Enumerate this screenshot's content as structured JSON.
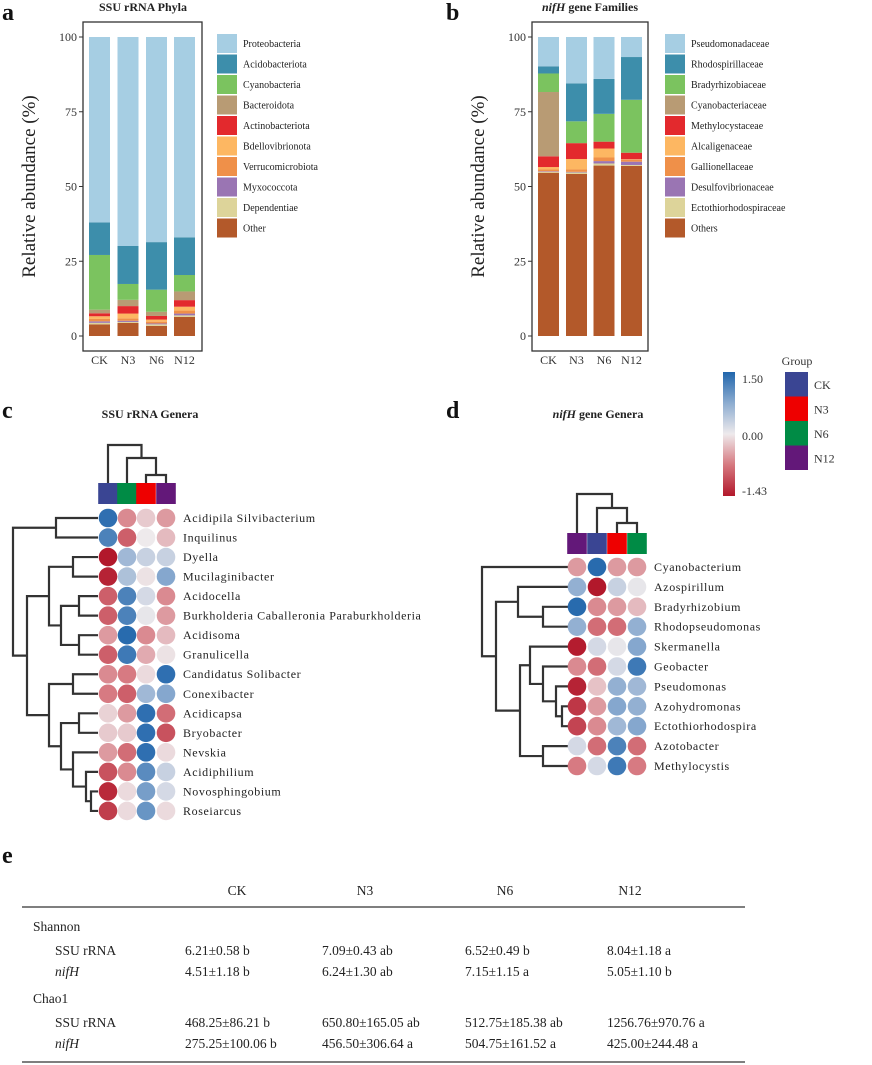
{
  "panels": {
    "a": "a",
    "b": "b",
    "c": "c",
    "d": "d",
    "e": "e"
  },
  "chart_data": [
    {
      "type": "bar",
      "stacked": true,
      "title": "SSU rRNA Phyla",
      "ylabel": "Relative abundance (%)",
      "xlabel": "",
      "ylim": [
        0,
        100
      ],
      "yticks": [
        "0",
        "25",
        "50",
        "75",
        "100"
      ],
      "categories": [
        "CK",
        "N3",
        "N6",
        "N12"
      ],
      "legend_position": "right",
      "series": [
        {
          "name": "Proteobacteria",
          "color": "#a6cee3",
          "values": [
            62.0,
            69.9,
            68.6,
            67.0
          ]
        },
        {
          "name": "Acidobacteriota",
          "color": "#3d8eab",
          "values": [
            10.9,
            12.7,
            15.9,
            12.6
          ]
        },
        {
          "name": "Cyanobacteria",
          "color": "#7bc35f",
          "values": [
            18.3,
            5.3,
            7.4,
            5.5
          ]
        },
        {
          "name": "Bacteroidota",
          "color": "#b89b74",
          "values": [
            1.2,
            2.1,
            1.4,
            2.9
          ]
        },
        {
          "name": "Actinobacteriota",
          "color": "#e3292d",
          "values": [
            1.0,
            2.5,
            1.2,
            2.2
          ]
        },
        {
          "name": "Bdellovibrionota",
          "color": "#fdb762",
          "values": [
            0.9,
            1.6,
            0.7,
            1.3
          ]
        },
        {
          "name": "Verrucomicrobiota",
          "color": "#ef9049",
          "values": [
            0.8,
            0.8,
            0.6,
            1.0
          ]
        },
        {
          "name": "Myxococcota",
          "color": "#9a75b3",
          "values": [
            0.5,
            0.4,
            0.3,
            0.6
          ]
        },
        {
          "name": "Dependentiae",
          "color": "#ddd49a",
          "values": [
            0.5,
            0.3,
            0.5,
            0.5
          ]
        },
        {
          "name": "Other",
          "color": "#b3592a",
          "values": [
            3.9,
            4.4,
            3.4,
            6.4
          ]
        }
      ]
    },
    {
      "type": "bar",
      "stacked": true,
      "title_italic": "nifH",
      "title": " gene Families",
      "ylabel": "Relative abundance (%)",
      "xlabel": "",
      "ylim": [
        0,
        100
      ],
      "yticks": [
        "0",
        "25",
        "50",
        "75",
        "100"
      ],
      "categories": [
        "CK",
        "N3",
        "N6",
        "N12"
      ],
      "legend_position": "right",
      "series": [
        {
          "name": "Pseudomonadaceae",
          "color": "#a6cee3",
          "values": [
            9.8,
            15.5,
            14.0,
            6.7
          ]
        },
        {
          "name": "Rhodospirillaceae",
          "color": "#3d8eab",
          "values": [
            2.4,
            12.7,
            11.7,
            14.3
          ]
        },
        {
          "name": "Bradyrhizobiaceae",
          "color": "#7bc35f",
          "values": [
            6.2,
            7.3,
            9.3,
            17.7
          ]
        },
        {
          "name": "Cyanobacteriaceae",
          "color": "#b89b74",
          "values": [
            21.5,
            0,
            0,
            0
          ]
        },
        {
          "name": "Methylocystaceae",
          "color": "#e3292d",
          "values": [
            3.6,
            5.3,
            2.3,
            2.2
          ]
        },
        {
          "name": "Alcaligenaceae",
          "color": "#fdb762",
          "values": [
            0.8,
            3.5,
            3.0,
            0.2
          ]
        },
        {
          "name": "Gallionellaceae",
          "color": "#ef9049",
          "values": [
            0.6,
            0.8,
            1.2,
            0.6
          ]
        },
        {
          "name": "Desulfovibrionaceae",
          "color": "#9a75b3",
          "values": [
            0.2,
            0.2,
            0.8,
            1.1
          ]
        },
        {
          "name": "Ectothiorhodospiraceae",
          "color": "#ddd49a",
          "values": [
            0.3,
            0.5,
            0.7,
            0.3
          ]
        },
        {
          "name": "Others",
          "color": "#b3592a",
          "values": [
            54.6,
            54.2,
            57.0,
            56.9
          ]
        }
      ]
    },
    {
      "type": "heatmap",
      "title": "SSU rRNA Genera",
      "columns": [
        "CK",
        "N6",
        "N3",
        "N12"
      ],
      "rows": [
        "Acidipila_Silvibacterium",
        "Inquilinus",
        "Dyella",
        "Mucilaginibacter",
        "Acidocella",
        "Burkholderia_Caballeronia_Paraburkholderia",
        "Acidisoma",
        "Granulicella",
        "Candidatus_Solibacter",
        "Conexibacter",
        "Acidicapsa",
        "Bryobacter",
        "Nevskia",
        "Acidiphilium",
        "Novosphingobium",
        "Roseiarcus"
      ],
      "row_labels": [
        "Acidipila  Silvibacterium",
        "Inquilinus",
        "Dyella",
        "Mucilaginibacter",
        "Acidocella",
        "Burkholderia  Caballeronia  Paraburkholderia",
        "Acidisoma",
        "Granulicella",
        "Candidatus  Solibacter",
        "Conexibacter",
        "Acidicapsa",
        "Bryobacter",
        "Nevskia",
        "Acidiphilium",
        "Novosphingobium",
        "Roseiarcus"
      ],
      "values": [
        [
          1.4,
          -0.6,
          -0.2,
          -0.5
        ],
        [
          1.2,
          -0.9,
          0.0,
          -0.3
        ],
        [
          -1.43,
          0.6,
          0.3,
          0.3
        ],
        [
          -1.35,
          0.5,
          -0.05,
          0.8
        ],
        [
          -0.9,
          1.2,
          0.2,
          -0.6
        ],
        [
          -0.9,
          1.2,
          0.05,
          -0.5
        ],
        [
          -0.5,
          1.45,
          -0.6,
          -0.3
        ],
        [
          -0.9,
          1.3,
          -0.4,
          -0.05
        ],
        [
          -0.6,
          -0.7,
          -0.1,
          1.4
        ],
        [
          -0.7,
          -0.9,
          0.6,
          0.8
        ],
        [
          -0.15,
          -0.5,
          1.4,
          -0.8
        ],
        [
          -0.2,
          -0.2,
          1.4,
          -1.0
        ],
        [
          -0.5,
          -0.8,
          1.4,
          -0.1
        ],
        [
          -1.0,
          -0.6,
          1.1,
          0.3
        ],
        [
          -1.3,
          -0.1,
          0.9,
          0.2
        ],
        [
          -1.15,
          -0.1,
          1.0,
          -0.1
        ]
      ]
    },
    {
      "type": "heatmap",
      "title_italic": "nifH",
      "title": " gene Genera",
      "columns": [
        "N12",
        "CK",
        "N3",
        "N6"
      ],
      "rows": [
        "Cyanobacterium",
        "Azospirillum",
        "Bradyrhizobium",
        "Rhodopseudomonas",
        "Skermanella",
        "Geobacter",
        "Pseudomonas",
        "Azohydromonas",
        "Ectothiorhodospira",
        "Azotobacter",
        "Methylocystis"
      ],
      "row_labels": [
        "Cyanobacterium",
        "Azospirillum",
        "Bradyrhizobium",
        "Rhodopseudomonas",
        "Skermanella",
        "Geobacter",
        "Pseudomonas",
        "Azohydromonas",
        "Ectothiorhodospira",
        "Azotobacter",
        "Methylocystis"
      ],
      "values": [
        [
          -0.5,
          1.45,
          -0.5,
          -0.5
        ],
        [
          0.7,
          -1.43,
          0.3,
          0.05
        ],
        [
          1.45,
          -0.6,
          -0.5,
          -0.3
        ],
        [
          0.7,
          -0.8,
          -0.8,
          0.7
        ],
        [
          -1.4,
          0.2,
          0.05,
          0.8
        ],
        [
          -0.6,
          -0.8,
          0.2,
          1.3
        ],
        [
          -1.35,
          -0.25,
          0.7,
          0.6
        ],
        [
          -1.2,
          -0.5,
          0.8,
          0.7
        ],
        [
          -1.1,
          -0.6,
          0.6,
          0.8
        ],
        [
          0.2,
          -0.8,
          1.2,
          -0.8
        ],
        [
          -0.7,
          0.2,
          1.3,
          -0.7
        ]
      ]
    }
  ],
  "color_scale": {
    "min": -1.43,
    "max": 1.5,
    "max_label": "1.50",
    "mid_label": "0.00",
    "min_label": "-1.43",
    "colors": {
      "low": "#b2182b",
      "mid": "#eeeaec",
      "high": "#2166ac"
    }
  },
  "group_legend": {
    "title": "Group",
    "items": [
      {
        "label": "CK",
        "color": "#3a4593"
      },
      {
        "label": "N3",
        "color": "#ee0000"
      },
      {
        "label": "N6",
        "color": "#008b45"
      },
      {
        "label": "N12",
        "color": "#631879"
      }
    ]
  },
  "table": {
    "headers": [
      "CK",
      "N3",
      "N6",
      "N12"
    ],
    "groups": [
      {
        "name": "Shannon",
        "rows": [
          {
            "label": "SSU rRNA",
            "italic": false,
            "values": [
              "6.21±0.58 b",
              "7.09±0.43 ab",
              "6.52±0.49 b",
              "8.04±1.18 a"
            ]
          },
          {
            "label": "nifH",
            "italic": true,
            "values": [
              "4.51±1.18 b",
              "6.24±1.30 ab",
              "7.15±1.15 a",
              "5.05±1.10 b"
            ]
          }
        ]
      },
      {
        "name": "Chao1",
        "rows": [
          {
            "label": "SSU rRNA",
            "italic": false,
            "values": [
              "468.25±86.21 b",
              "650.80±165.05 ab",
              "512.75±185.38 ab",
              "1256.76±970.76 a"
            ]
          },
          {
            "label": "nifH",
            "italic": true,
            "values": [
              "275.25±100.06 b",
              "456.50±306.64 a",
              "504.75±161.52 a",
              "425.00±244.48 a"
            ]
          }
        ]
      }
    ]
  }
}
